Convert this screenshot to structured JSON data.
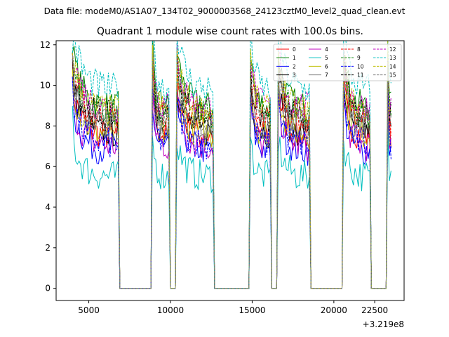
{
  "suptitle": "Data file: modeM0/AS1A07_134T02_9000003568_24123cztM0_level2_quad_clean.evt",
  "chart_data": {
    "type": "line",
    "title": "Quadrant 1 module wise count rates with 100.0s bins.",
    "xlabel": "",
    "ylabel": "",
    "x_offset_text": "+3.219e8",
    "xlim": [
      3000,
      24300
    ],
    "ylim": [
      -0.6,
      12.2
    ],
    "x_ticks": [
      5000,
      10000,
      15000,
      20000,
      22500
    ],
    "y_ticks": [
      0,
      2,
      4,
      6,
      8,
      10,
      12
    ],
    "x_tick_labels": [
      "5000",
      "10000",
      "15000",
      "20000",
      "22500"
    ],
    "y_tick_labels": [
      "0",
      "2",
      "4",
      "6",
      "8",
      "10",
      "12"
    ],
    "legend_position": "upper-right",
    "on_segments": [
      [
        4000,
        6800
      ],
      [
        8900,
        9900
      ],
      [
        10400,
        12600
      ],
      [
        14900,
        16100
      ],
      [
        16600,
        18500
      ],
      [
        20600,
        22200
      ],
      [
        23300,
        23500
      ]
    ],
    "series": [
      {
        "name": "0",
        "color": "#ff0000",
        "dash": "solid",
        "level": 7.5
      },
      {
        "name": "1",
        "color": "#008000",
        "dash": "solid",
        "level": 8.9
      },
      {
        "name": "2",
        "color": "#0000ff",
        "dash": "solid",
        "level": 6.8
      },
      {
        "name": "3",
        "color": "#000000",
        "dash": "solid",
        "level": 7.7
      },
      {
        "name": "4",
        "color": "#bf00bf",
        "dash": "solid",
        "level": 7.0
      },
      {
        "name": "5",
        "color": "#00bfbf",
        "dash": "solid",
        "level": 5.5
      },
      {
        "name": "6",
        "color": "#bfbf00",
        "dash": "solid",
        "level": 7.6
      },
      {
        "name": "7",
        "color": "#808080",
        "dash": "solid",
        "level": 8.2
      },
      {
        "name": "8",
        "color": "#ff0000",
        "dash": "dashed",
        "level": 8.3
      },
      {
        "name": "9",
        "color": "#008000",
        "dash": "dashed",
        "level": 8.6
      },
      {
        "name": "10",
        "color": "#0000ff",
        "dash": "dashed",
        "level": 7.1
      },
      {
        "name": "11",
        "color": "#000000",
        "dash": "dashed",
        "level": 8.4
      },
      {
        "name": "12",
        "color": "#bf00bf",
        "dash": "dashed",
        "level": 8.9
      },
      {
        "name": "13",
        "color": "#00bfbf",
        "dash": "dashed",
        "level": 9.8
      },
      {
        "name": "14",
        "color": "#bfbf00",
        "dash": "dashed",
        "level": 8.7
      },
      {
        "name": "15",
        "color": "#808080",
        "dash": "dashed",
        "level": 8.0
      }
    ]
  }
}
